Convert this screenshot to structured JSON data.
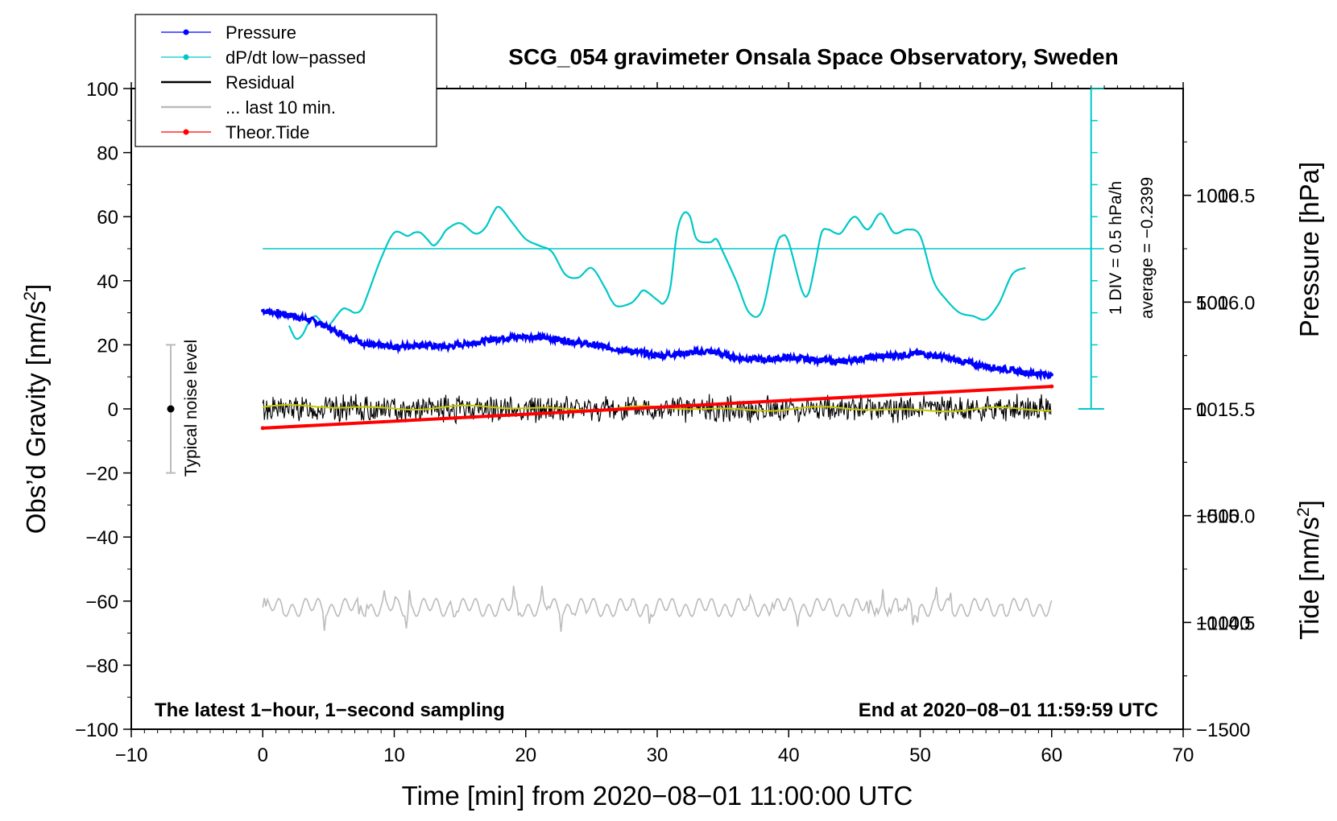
{
  "chart_data": {
    "type": "line",
    "title": "SCG_054 gravimeter Onsala Space Observatory, Sweden",
    "xlabel": "Time [min] from 2020−08−01 11:00:00 UTC",
    "ylabel_left": "Obs’d Gravity [nm/s²]",
    "ylabel_left_main": "Obs’d Gravity [nm/s",
    "ylabel_right_pressure_main": "Pressure [hPa]",
    "ylabel_right_tide_main": "Tide [nm/s",
    "ylabel_sup": "2",
    "ylabel_close": "]",
    "xlim": [
      -10,
      70
    ],
    "ylim_left": [
      -100,
      100
    ],
    "pressure_lim": [
      1014.0,
      1017.0
    ],
    "tide_lim": [
      -1500,
      1500
    ],
    "x_ticks": [
      "−10",
      "0",
      "10",
      "20",
      "30",
      "40",
      "50",
      "60",
      "70"
    ],
    "y_left_ticks": [
      "100",
      "80",
      "60",
      "40",
      "20",
      "0",
      "−20",
      "−40",
      "−60",
      "−80",
      "−100"
    ],
    "pressure_ticks": [
      "1016.5",
      "1016.0",
      "1015.5",
      "1015.0",
      "1014.5"
    ],
    "tide_ticks": [
      "1000",
      "500",
      "0",
      "−500",
      "−1000",
      "−1500"
    ],
    "legend": [
      {
        "label": "Pressure",
        "color": "#0000ff",
        "marker": true
      },
      {
        "label": "dP/dt low−passed",
        "color": "#00c8c8",
        "marker": true
      },
      {
        "label": "Residual",
        "color": "#000000",
        "marker": false
      },
      {
        "label": "... last 10 min.",
        "color": "#bbbbbb",
        "marker": false
      },
      {
        "label": "Theor.Tide",
        "color": "#ff0000",
        "marker": true
      }
    ],
    "annotations": {
      "bottom_left": "The latest 1−hour, 1−second sampling",
      "bottom_right": "End at 2020−08−01 11:59:59 UTC",
      "noise": "Typical noise level",
      "div": "1 DIV = 0.5 hPa/h",
      "average": "average = −0.2399"
    },
    "noise_bar": {
      "x": -7,
      "center": 0,
      "half_range": 20
    },
    "dpdt_baseline": 50,
    "series": [
      {
        "name": "Pressure",
        "axis": "pressure",
        "color": "#0000ff",
        "x": [
          0,
          2,
          4,
          6,
          8,
          10,
          12,
          14,
          16,
          18,
          20,
          22,
          24,
          26,
          28,
          30,
          32,
          34,
          36,
          38,
          40,
          42,
          44,
          46,
          48,
          50,
          52,
          54,
          56,
          58,
          60
        ],
        "y": [
          1015.96,
          1015.94,
          1015.91,
          1015.85,
          1015.8,
          1015.79,
          1015.8,
          1015.79,
          1015.81,
          1015.83,
          1015.84,
          1015.83,
          1015.81,
          1015.79,
          1015.77,
          1015.75,
          1015.76,
          1015.77,
          1015.74,
          1015.73,
          1015.74,
          1015.73,
          1015.72,
          1015.74,
          1015.75,
          1015.76,
          1015.74,
          1015.71,
          1015.69,
          1015.67,
          1015.66
        ]
      },
      {
        "name": "dP/dt low−passed",
        "axis": "left",
        "color": "#00c8c8",
        "x": [
          2,
          2.5,
          3,
          3.5,
          4,
          4.5,
          5,
          6,
          6.5,
          7,
          7.5,
          8,
          9,
          10,
          11,
          11.5,
          12,
          12.5,
          13,
          13.5,
          14,
          15,
          16,
          16.5,
          17,
          17.5,
          18,
          19,
          20,
          21,
          22,
          23,
          24,
          25,
          26,
          26.5,
          27,
          28,
          28.5,
          29,
          30,
          30.5,
          31,
          31.5,
          32,
          32.5,
          33,
          34,
          34.5,
          35,
          36,
          37,
          38,
          39,
          39.5,
          40,
          41,
          41.5,
          42,
          42.5,
          43,
          43.5,
          44,
          45,
          46,
          47,
          48,
          49,
          50,
          51,
          52,
          53,
          54,
          55,
          56,
          57,
          58
        ],
        "y": [
          26,
          22,
          23,
          27,
          29,
          27,
          26,
          31,
          31,
          30,
          31,
          36,
          47,
          55,
          54,
          55,
          55,
          53,
          51,
          53,
          56,
          58,
          55,
          55,
          57,
          61,
          63,
          58,
          53,
          51,
          49,
          42,
          41,
          44,
          38,
          34,
          32,
          33,
          35,
          37,
          34,
          33,
          38,
          55,
          61,
          60,
          53,
          52,
          53,
          49,
          40,
          30,
          31,
          50,
          54,
          52,
          37,
          36,
          45,
          55,
          56,
          55,
          55,
          60,
          56,
          61,
          55,
          56,
          54,
          40,
          34,
          30,
          29,
          28,
          33,
          42,
          44
        ]
      },
      {
        "name": "Residual",
        "axis": "left",
        "color": "#000000",
        "x_range": [
          0,
          60
        ],
        "y_center": 0,
        "y_amplitude": 4
      },
      {
        "name": "... last 10 min.",
        "axis": "left",
        "color": "#bbbbbb",
        "x_range": [
          0,
          60
        ],
        "y_center": -62,
        "y_amplitude": 3
      },
      {
        "name": "Theor.Tide",
        "axis": "tide",
        "color": "#ff0000",
        "x": [
          0,
          60
        ],
        "y": [
          -90,
          105
        ]
      }
    ]
  }
}
